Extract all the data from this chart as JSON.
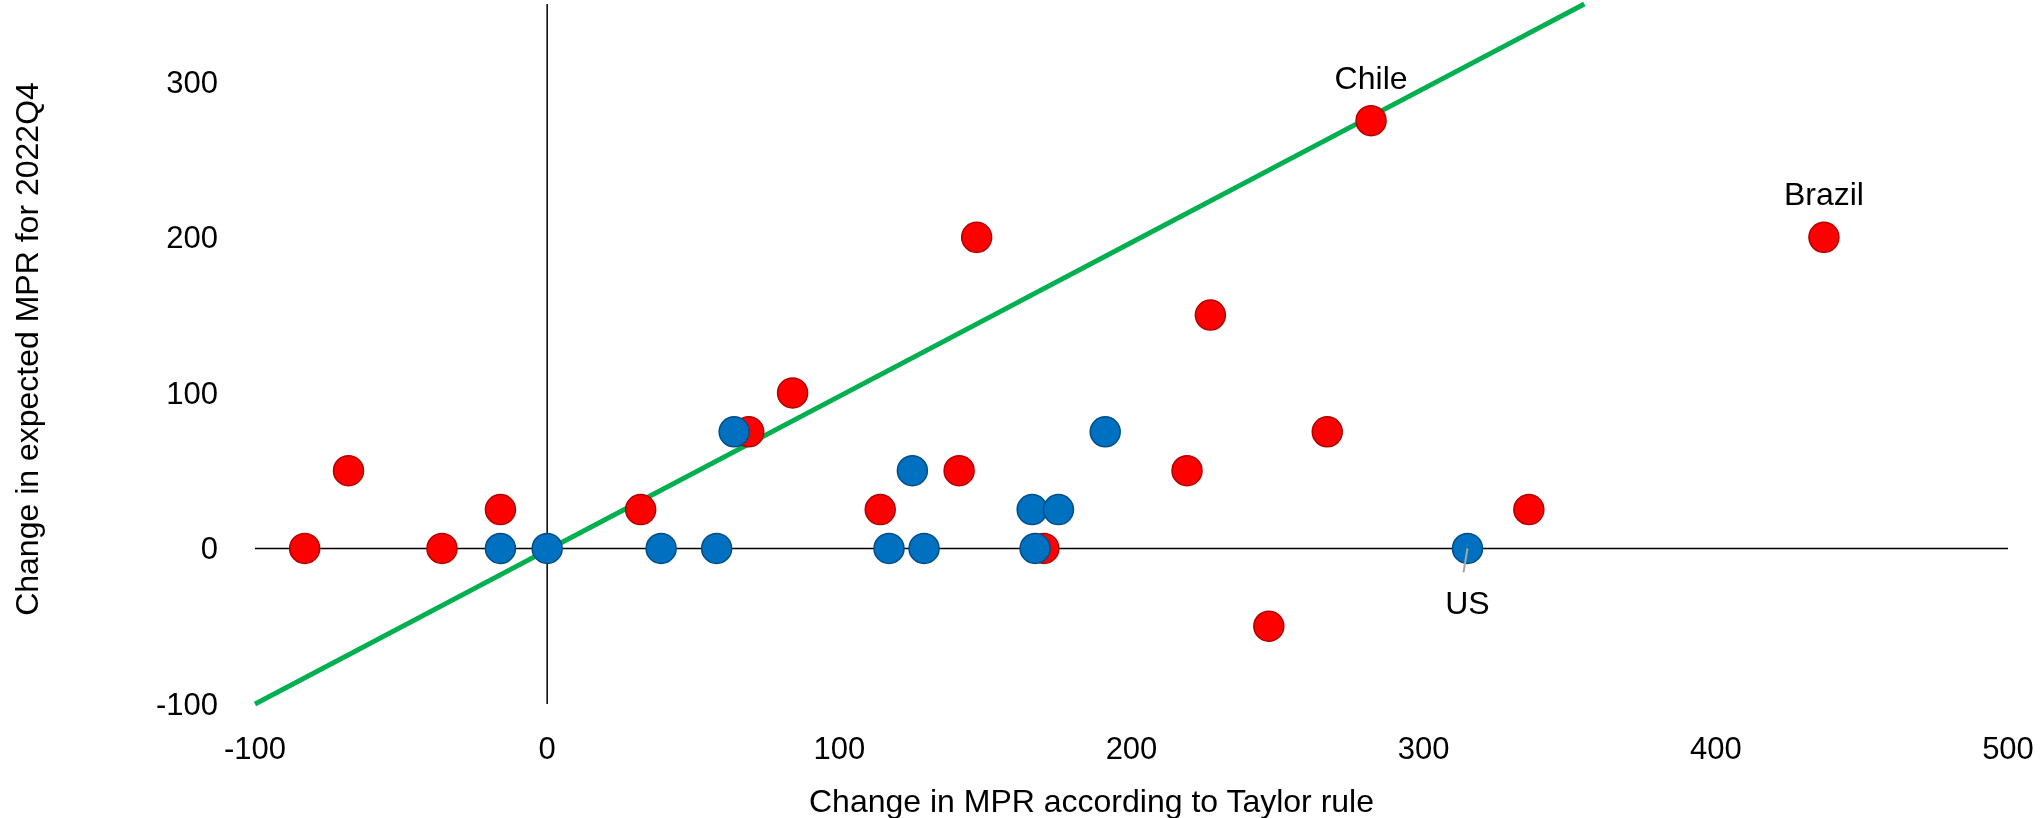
{
  "chart_data": {
    "type": "scatter",
    "xlabel": "Change in MPR according to Taylor rule",
    "ylabel": "Change in expected MPR for 2022Q4",
    "xlim": [
      -100,
      500
    ],
    "xticks": [
      -100,
      0,
      100,
      200,
      300,
      400,
      500
    ],
    "ylim": [
      -100,
      350
    ],
    "yticks": [
      -100,
      0,
      100,
      200,
      300
    ],
    "marker": "circle",
    "series": [
      {
        "color": "#ff0000",
        "x": [
          -83,
          -68,
          -36,
          -16,
          32,
          69,
          84,
          114,
          147,
          141,
          170,
          227,
          219,
          247,
          267,
          336,
          282,
          437
        ],
        "values": [
          0,
          50,
          0,
          25,
          25,
          75,
          100,
          25,
          200,
          50,
          0,
          150,
          50,
          -50,
          75,
          25,
          275,
          200
        ]
      },
      {
        "color": "#0070c0",
        "x": [
          -16,
          0,
          39,
          58,
          64,
          125,
          117,
          129,
          166,
          175,
          167,
          191,
          315
        ],
        "values": [
          0,
          0,
          0,
          0,
          75,
          50,
          0,
          0,
          25,
          25,
          0,
          75,
          0
        ]
      },
      {
        "type": "line",
        "marker": "none",
        "color": "#00b050",
        "x": [
          -100,
          355
        ],
        "values": [
          -100,
          350
        ]
      }
    ],
    "annotations": [
      {
        "text": "Chile",
        "x": 282,
        "y": 275
      },
      {
        "text": "Brazil",
        "x": 437,
        "y": 200
      },
      {
        "text": "US",
        "x": 315,
        "y": 0
      }
    ]
  }
}
